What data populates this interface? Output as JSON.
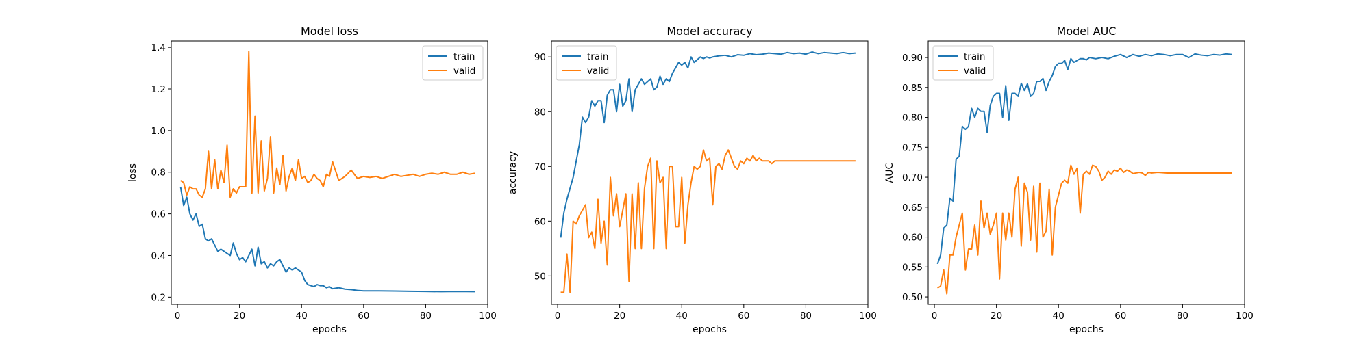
{
  "chart_data": [
    {
      "type": "line",
      "title": "Model loss",
      "xlabel": "epochs",
      "ylabel": "loss",
      "xlim": [
        -2,
        100
      ],
      "ylim": [
        0.165,
        1.43
      ],
      "xticks": [
        0,
        20,
        40,
        60,
        80,
        100
      ],
      "yticks": [
        0.2,
        0.4,
        0.6,
        0.8,
        1.0,
        1.2,
        1.4
      ],
      "yticklabels": [
        "0.2",
        "0.4",
        "0.6",
        "0.8",
        "1.0",
        "1.2",
        "1.4"
      ],
      "legend_position": "top-right",
      "grid": false,
      "series": [
        {
          "name": "train",
          "color": "#1f77b4",
          "x": [
            1,
            2,
            3,
            4,
            5,
            6,
            7,
            8,
            9,
            10,
            11,
            12,
            13,
            14,
            15,
            16,
            17,
            18,
            19,
            20,
            21,
            22,
            23,
            24,
            25,
            26,
            27,
            28,
            29,
            30,
            31,
            32,
            33,
            34,
            35,
            36,
            37,
            38,
            39,
            40,
            41,
            42,
            43,
            44,
            45,
            46,
            47,
            48,
            49,
            50,
            52,
            54,
            56,
            58,
            60,
            65,
            70,
            75,
            80,
            85,
            90,
            96
          ],
          "y": [
            0.73,
            0.64,
            0.68,
            0.6,
            0.57,
            0.6,
            0.54,
            0.55,
            0.48,
            0.47,
            0.48,
            0.45,
            0.42,
            0.43,
            0.42,
            0.41,
            0.4,
            0.46,
            0.41,
            0.38,
            0.39,
            0.37,
            0.4,
            0.43,
            0.35,
            0.44,
            0.36,
            0.37,
            0.34,
            0.36,
            0.35,
            0.37,
            0.38,
            0.35,
            0.32,
            0.34,
            0.33,
            0.34,
            0.33,
            0.32,
            0.28,
            0.26,
            0.255,
            0.25,
            0.26,
            0.255,
            0.255,
            0.245,
            0.25,
            0.24,
            0.245,
            0.238,
            0.236,
            0.232,
            0.23,
            0.23,
            0.229,
            0.228,
            0.227,
            0.226,
            0.227,
            0.226
          ]
        },
        {
          "name": "valid",
          "color": "#ff7f0e",
          "x": [
            1,
            2,
            3,
            4,
            5,
            6,
            7,
            8,
            9,
            10,
            11,
            12,
            13,
            14,
            15,
            16,
            17,
            18,
            19,
            20,
            21,
            22,
            23,
            24,
            25,
            26,
            27,
            28,
            29,
            30,
            31,
            32,
            33,
            34,
            35,
            36,
            37,
            38,
            39,
            40,
            41,
            42,
            43,
            44,
            45,
            46,
            47,
            48,
            49,
            50,
            52,
            54,
            56,
            58,
            60,
            62,
            64,
            66,
            68,
            70,
            72,
            74,
            76,
            78,
            80,
            82,
            84,
            86,
            88,
            90,
            92,
            94,
            96
          ],
          "y": [
            0.76,
            0.75,
            0.69,
            0.73,
            0.72,
            0.72,
            0.69,
            0.68,
            0.72,
            0.9,
            0.72,
            0.86,
            0.72,
            0.81,
            0.75,
            0.93,
            0.68,
            0.72,
            0.7,
            0.73,
            0.73,
            0.73,
            1.38,
            0.7,
            1.07,
            0.7,
            0.95,
            0.71,
            0.77,
            0.97,
            0.7,
            0.82,
            0.74,
            0.88,
            0.71,
            0.78,
            0.82,
            0.76,
            0.86,
            0.77,
            0.78,
            0.75,
            0.76,
            0.79,
            0.77,
            0.76,
            0.73,
            0.79,
            0.78,
            0.85,
            0.76,
            0.78,
            0.81,
            0.77,
            0.78,
            0.775,
            0.78,
            0.77,
            0.78,
            0.79,
            0.78,
            0.785,
            0.79,
            0.78,
            0.79,
            0.795,
            0.79,
            0.8,
            0.79,
            0.79,
            0.8,
            0.79,
            0.795
          ]
        }
      ]
    },
    {
      "type": "line",
      "title": "Model accuracy",
      "xlabel": "epochs",
      "ylabel": "accuracy",
      "xlim": [
        -2,
        100
      ],
      "ylim": [
        44.8,
        92.9
      ],
      "xticks": [
        0,
        20,
        40,
        60,
        80,
        100
      ],
      "yticks": [
        50,
        60,
        70,
        80,
        90
      ],
      "yticklabels": [
        "50",
        "60",
        "70",
        "80",
        "90"
      ],
      "legend_position": "top-left",
      "grid": false,
      "series": [
        {
          "name": "train",
          "color": "#1f77b4",
          "x": [
            1,
            2,
            3,
            4,
            5,
            6,
            7,
            8,
            9,
            10,
            11,
            12,
            13,
            14,
            15,
            16,
            17,
            18,
            19,
            20,
            21,
            22,
            23,
            24,
            25,
            26,
            27,
            28,
            29,
            30,
            31,
            32,
            33,
            34,
            35,
            36,
            37,
            38,
            39,
            40,
            41,
            42,
            43,
            44,
            45,
            46,
            47,
            48,
            49,
            50,
            52,
            54,
            56,
            58,
            60,
            62,
            64,
            66,
            68,
            70,
            72,
            74,
            76,
            78,
            80,
            82,
            84,
            86,
            88,
            90,
            92,
            94,
            96
          ],
          "y": [
            57,
            61.5,
            64,
            66,
            68,
            71,
            74,
            79,
            78,
            79,
            82,
            81,
            82,
            82,
            78,
            83,
            84,
            84,
            80,
            85,
            81,
            82,
            86,
            80,
            84,
            85,
            86,
            85,
            85.5,
            86,
            84,
            84.5,
            86.5,
            85,
            86,
            85.5,
            87,
            88,
            89,
            88.5,
            89,
            88,
            90,
            89,
            89.5,
            90,
            89.7,
            90,
            89.8,
            90,
            90.2,
            90.3,
            90,
            90.4,
            90.3,
            90.6,
            90.4,
            90.5,
            90.7,
            90.6,
            90.5,
            90.8,
            90.6,
            90.7,
            90.5,
            90.9,
            90.6,
            90.8,
            90.7,
            90.6,
            90.8,
            90.6,
            90.7
          ]
        },
        {
          "name": "valid",
          "color": "#ff7f0e",
          "x": [
            1,
            2,
            3,
            4,
            5,
            6,
            7,
            8,
            9,
            10,
            11,
            12,
            13,
            14,
            15,
            16,
            17,
            18,
            19,
            20,
            21,
            22,
            23,
            24,
            25,
            26,
            27,
            28,
            29,
            30,
            31,
            32,
            33,
            34,
            35,
            36,
            37,
            38,
            39,
            40,
            41,
            42,
            43,
            44,
            45,
            46,
            47,
            48,
            49,
            50,
            51,
            52,
            53,
            54,
            55,
            56,
            57,
            58,
            59,
            60,
            61,
            62,
            63,
            64,
            65,
            66,
            67,
            68,
            69,
            70,
            72,
            75,
            80,
            85,
            90,
            96
          ],
          "y": [
            47,
            47,
            54,
            47,
            60,
            59.5,
            61,
            62,
            63,
            57,
            58,
            55,
            64,
            56,
            60,
            52,
            68,
            61,
            65,
            59,
            62,
            65,
            49,
            65,
            55,
            67,
            55,
            66,
            70,
            71.5,
            55,
            71,
            67,
            68,
            55,
            70,
            70,
            59,
            59,
            68,
            56,
            63,
            67,
            70,
            69.5,
            70,
            73,
            71,
            71.5,
            63,
            70,
            70.5,
            69.5,
            72,
            73,
            71.5,
            70,
            69.5,
            71,
            70.5,
            71.5,
            71,
            72,
            71,
            71.5,
            71,
            71,
            71,
            70.5,
            71,
            71,
            71,
            71,
            71,
            71,
            71
          ]
        }
      ]
    },
    {
      "type": "line",
      "title": "Model AUC",
      "xlabel": "epochs",
      "ylabel": "AUC",
      "xlim": [
        -2,
        100
      ],
      "ylim": [
        0.4875,
        0.9275
      ],
      "xticks": [
        0,
        20,
        40,
        60,
        80,
        100
      ],
      "yticks": [
        0.5,
        0.55,
        0.6,
        0.65,
        0.7,
        0.75,
        0.8,
        0.85,
        0.9
      ],
      "yticklabels": [
        "0.50",
        "0.55",
        "0.60",
        "0.65",
        "0.70",
        "0.75",
        "0.80",
        "0.85",
        "0.90"
      ],
      "legend_position": "top-left",
      "grid": false,
      "series": [
        {
          "name": "train",
          "color": "#1f77b4",
          "x": [
            1,
            2,
            3,
            4,
            5,
            6,
            7,
            8,
            9,
            10,
            11,
            12,
            13,
            14,
            15,
            16,
            17,
            18,
            19,
            20,
            21,
            22,
            23,
            24,
            25,
            26,
            27,
            28,
            29,
            30,
            31,
            32,
            33,
            34,
            35,
            36,
            37,
            38,
            39,
            40,
            41,
            42,
            43,
            44,
            45,
            46,
            47,
            48,
            49,
            50,
            52,
            54,
            56,
            58,
            60,
            62,
            64,
            66,
            68,
            70,
            72,
            74,
            76,
            78,
            80,
            82,
            84,
            86,
            88,
            90,
            92,
            94,
            96
          ],
          "y": [
            0.555,
            0.57,
            0.615,
            0.62,
            0.665,
            0.66,
            0.73,
            0.735,
            0.785,
            0.78,
            0.785,
            0.815,
            0.8,
            0.815,
            0.81,
            0.81,
            0.775,
            0.82,
            0.835,
            0.84,
            0.84,
            0.8,
            0.853,
            0.795,
            0.84,
            0.84,
            0.835,
            0.857,
            0.845,
            0.856,
            0.835,
            0.84,
            0.86,
            0.86,
            0.865,
            0.845,
            0.86,
            0.87,
            0.885,
            0.89,
            0.89,
            0.895,
            0.88,
            0.898,
            0.892,
            0.895,
            0.898,
            0.898,
            0.896,
            0.9,
            0.898,
            0.9,
            0.898,
            0.902,
            0.905,
            0.9,
            0.905,
            0.902,
            0.905,
            0.903,
            0.906,
            0.905,
            0.903,
            0.905,
            0.905,
            0.9,
            0.906,
            0.904,
            0.903,
            0.905,
            0.904,
            0.906,
            0.905
          ]
        },
        {
          "name": "valid",
          "color": "#ff7f0e",
          "x": [
            1,
            2,
            3,
            4,
            5,
            6,
            7,
            8,
            9,
            10,
            11,
            12,
            13,
            14,
            15,
            16,
            17,
            18,
            19,
            20,
            21,
            22,
            23,
            24,
            25,
            26,
            27,
            28,
            29,
            30,
            31,
            32,
            33,
            34,
            35,
            36,
            37,
            38,
            39,
            40,
            41,
            42,
            43,
            44,
            45,
            46,
            47,
            48,
            49,
            50,
            51,
            52,
            53,
            54,
            55,
            56,
            57,
            58,
            59,
            60,
            61,
            62,
            63,
            64,
            65,
            66,
            67,
            68,
            69,
            70,
            72,
            75,
            80,
            85,
            90,
            96
          ],
          "y": [
            0.515,
            0.518,
            0.545,
            0.505,
            0.57,
            0.57,
            0.6,
            0.62,
            0.64,
            0.545,
            0.58,
            0.58,
            0.62,
            0.57,
            0.66,
            0.615,
            0.64,
            0.605,
            0.62,
            0.64,
            0.53,
            0.64,
            0.595,
            0.64,
            0.6,
            0.68,
            0.7,
            0.585,
            0.69,
            0.675,
            0.595,
            0.685,
            0.575,
            0.69,
            0.6,
            0.61,
            0.68,
            0.57,
            0.65,
            0.67,
            0.69,
            0.695,
            0.69,
            0.72,
            0.705,
            0.715,
            0.64,
            0.705,
            0.71,
            0.705,
            0.72,
            0.718,
            0.71,
            0.695,
            0.7,
            0.71,
            0.705,
            0.712,
            0.71,
            0.715,
            0.708,
            0.712,
            0.71,
            0.706,
            0.707,
            0.708,
            0.707,
            0.703,
            0.708,
            0.707,
            0.708,
            0.707,
            0.707,
            0.707,
            0.707,
            0.707
          ]
        }
      ]
    }
  ]
}
